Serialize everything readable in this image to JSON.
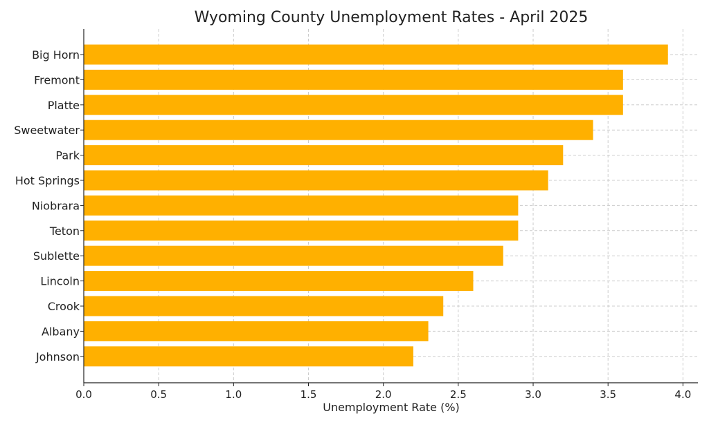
{
  "chart_data": {
    "type": "bar",
    "orientation": "horizontal",
    "title": "Wyoming County Unemployment Rates - April 2025",
    "xlabel": "Unemployment Rate (%)",
    "ylabel": "",
    "categories": [
      "Big Horn",
      "Fremont",
      "Platte",
      "Sweetwater",
      "Park",
      "Hot Springs",
      "Niobrara",
      "Teton",
      "Sublette",
      "Lincoln",
      "Crook",
      "Albany",
      "Johnson"
    ],
    "values": [
      3.9,
      3.6,
      3.6,
      3.4,
      3.2,
      3.1,
      2.9,
      2.9,
      2.8,
      2.6,
      2.4,
      2.3,
      2.2
    ],
    "xlim": [
      0,
      4.1
    ],
    "xticks": [
      "0.0",
      "0.5",
      "1.0",
      "1.5",
      "2.0",
      "2.5",
      "3.0",
      "3.5",
      "4.0"
    ],
    "grid": true,
    "bar_color": "#FFB000"
  }
}
